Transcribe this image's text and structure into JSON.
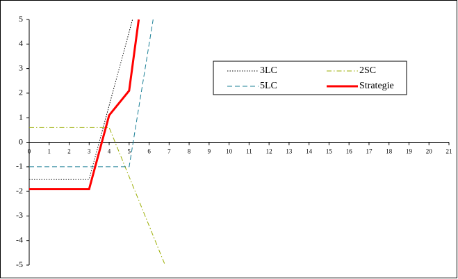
{
  "chart_data": {
    "type": "line",
    "xlim": [
      0,
      21
    ],
    "xticks": [
      0,
      1,
      2,
      3,
      4,
      5,
      6,
      7,
      8,
      9,
      10,
      11,
      12,
      13,
      14,
      15,
      16,
      17,
      18,
      19,
      20,
      21
    ],
    "ylim": [
      -5,
      5
    ],
    "yticks": [
      -5,
      -4,
      -3,
      -2,
      -1,
      0,
      1,
      2,
      3,
      4,
      5
    ],
    "legend": "upper-right",
    "series": [
      {
        "name": "3LC",
        "color": "#000000",
        "line_style": "dotted",
        "x": [
          0,
          3,
          5.17
        ],
        "values": [
          -1.5,
          -1.5,
          5
        ]
      },
      {
        "name": "2SC",
        "color": "#9aad00",
        "line_style": "dashdot",
        "x": [
          0,
          4,
          6.8
        ],
        "values": [
          0.6,
          0.6,
          -5
        ]
      },
      {
        "name": "5LC",
        "color": "#1a7f96",
        "line_style": "dashed",
        "x": [
          0,
          5,
          6.2
        ],
        "values": [
          -1,
          -1,
          5
        ]
      },
      {
        "name": "Strategie",
        "color": "#ff0000",
        "line_style": "solid",
        "x": [
          0,
          3,
          4,
          5,
          5.48
        ],
        "values": [
          -1.9,
          -1.9,
          1.1,
          2.1,
          5
        ]
      }
    ]
  }
}
